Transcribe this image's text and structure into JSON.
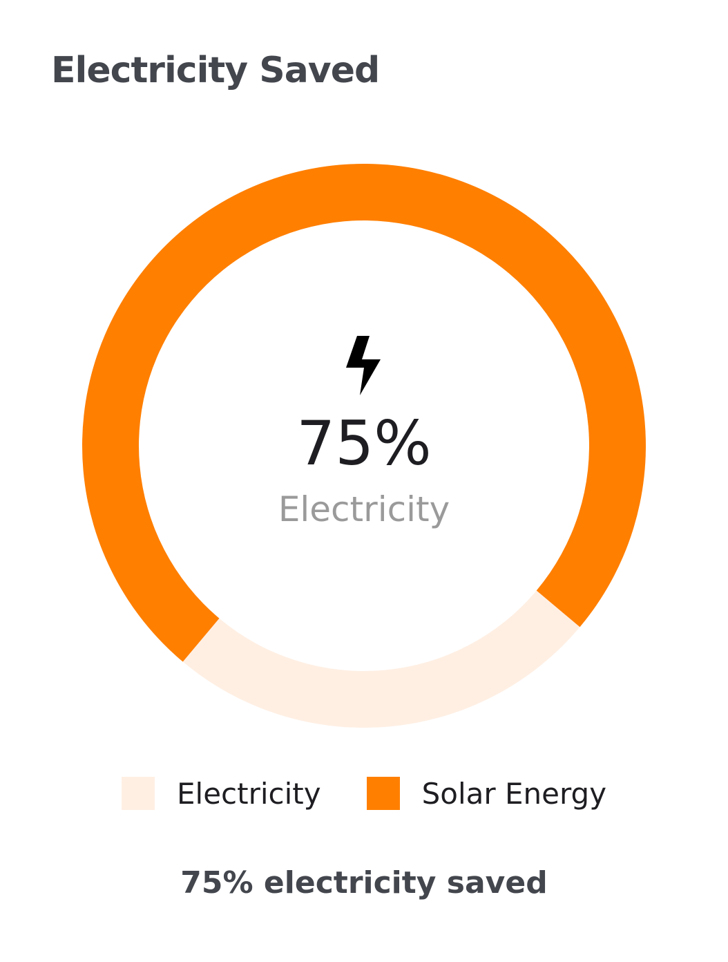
{
  "card": {
    "title": "Electricity Saved",
    "footer": "75% electricity saved"
  },
  "colors": {
    "primary": "#ff7f00",
    "light": "#ffefe3",
    "title": "#43464d",
    "value": "#1e1e22",
    "muted": "#9a9a9a"
  },
  "center": {
    "icon": "lightning-bolt-icon",
    "value": "75%",
    "label": "Electricity"
  },
  "chart_data": {
    "type": "pie",
    "style": "donut",
    "series": [
      {
        "name": "Electricity",
        "value": 25,
        "color": "#ffefe3"
      },
      {
        "name": "Solar Energy",
        "value": 75,
        "color": "#ff7f00"
      }
    ],
    "legend": {
      "placement": "bottom",
      "entries": [
        "Electricity",
        "Solar Energy"
      ]
    }
  }
}
